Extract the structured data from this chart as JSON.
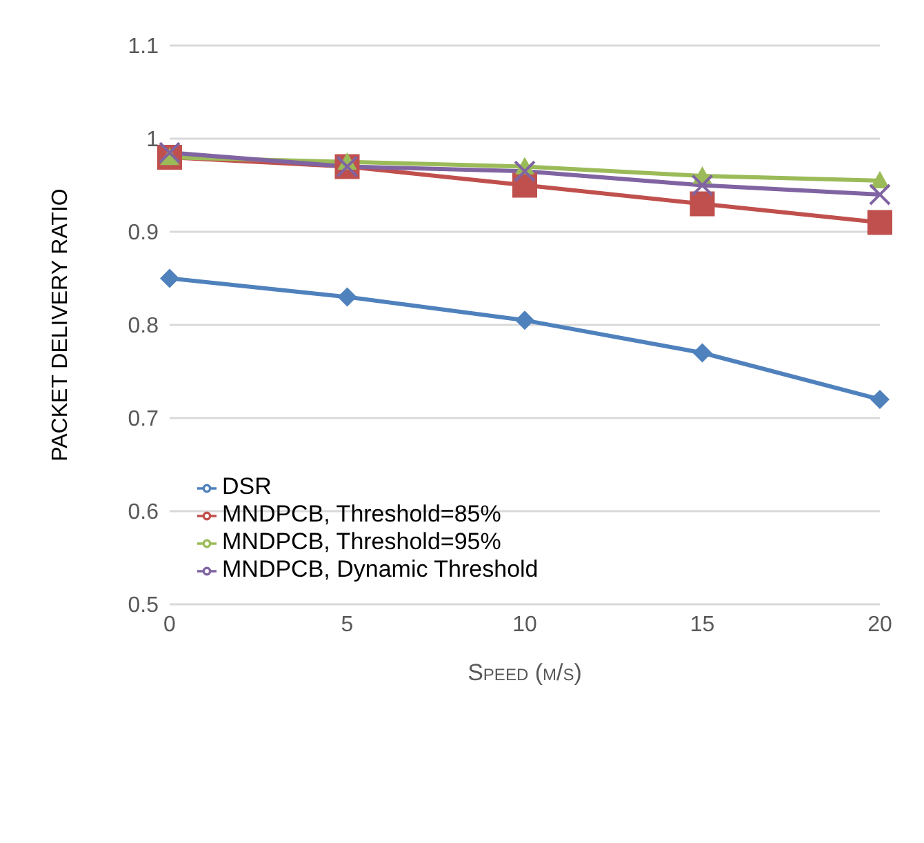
{
  "chart_data": {
    "type": "line",
    "xlabel": "Speed (m/s)",
    "ylabel": "PACKET DELIVERY RATIO",
    "categories": [
      "0",
      "5",
      "10",
      "15",
      "20"
    ],
    "series": [
      {
        "name": "DSR",
        "color": "#4f81bd",
        "marker": "diamond",
        "values": [
          0.85,
          0.83,
          0.805,
          0.77,
          0.72
        ]
      },
      {
        "name": "MNDPCB, Threshold=85%",
        "color": "#c0504d",
        "marker": "square",
        "values": [
          0.98,
          0.97,
          0.95,
          0.93,
          0.91
        ]
      },
      {
        "name": "MNDPCB, Threshold=95%",
        "color": "#9bbb59",
        "marker": "triangle",
        "values": [
          0.98,
          0.975,
          0.97,
          0.96,
          0.955
        ]
      },
      {
        "name": "MNDPCB, Dynamic Threshold",
        "color": "#8064a2",
        "marker": "cross",
        "values": [
          0.985,
          0.97,
          0.965,
          0.95,
          0.94
        ]
      }
    ],
    "ylim": [
      0.5,
      1.1
    ],
    "yticks": [
      0.5,
      0.6,
      0.7,
      0.8,
      0.9,
      1,
      1.1
    ],
    "grid": "y",
    "legend": "bottom left",
    "line_style": "solid"
  }
}
